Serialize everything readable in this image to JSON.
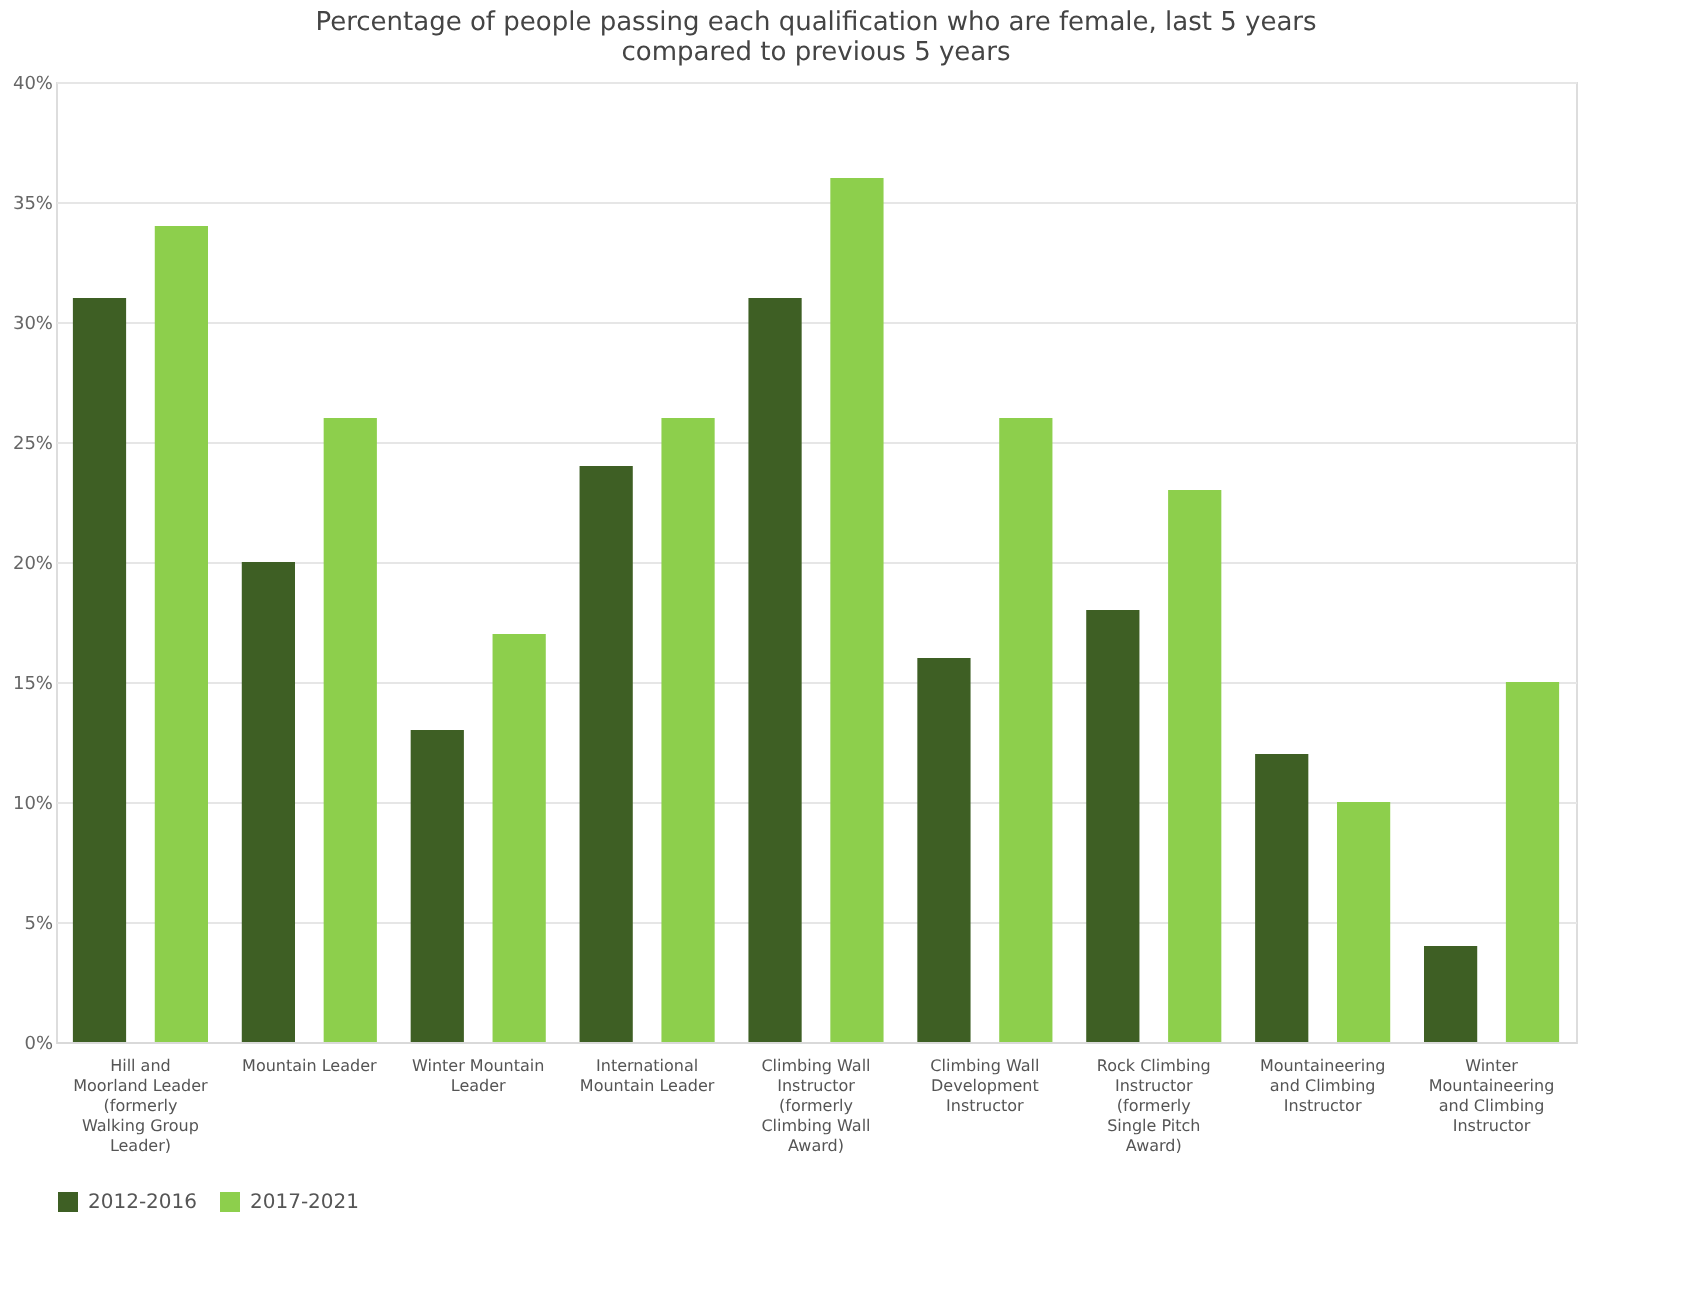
{
  "chart_data": {
    "type": "bar",
    "title": "Percentage of people passing each qualification who are female, last 5 years compared to previous 5 years",
    "categories": [
      "Hill and Moorland Leader (formerly Walking Group Leader)",
      "Mountain Leader",
      "Winter Mountain Leader",
      "International Mountain Leader",
      "Climbing Wall Instructor (formerly Climbing Wall Award)",
      "Climbing Wall Development Instructor",
      "Rock Climbing Instructor (formerly Single Pitch Award)",
      "Mountaineering and Climbing Instructor",
      "Winter Mountaineering and Climbing Instructor"
    ],
    "series": [
      {
        "name": "2012-2016",
        "color": "#3e5f24",
        "values": [
          31,
          20,
          13,
          24,
          31,
          16,
          18,
          12,
          4
        ]
      },
      {
        "name": "2017-2021",
        "color": "#8dcf4c",
        "values": [
          34,
          26,
          17,
          26,
          36,
          26,
          23,
          10,
          15
        ]
      }
    ],
    "ylim": [
      0,
      40
    ],
    "yticks": [
      {
        "value": 0,
        "label": "0%"
      },
      {
        "value": 5,
        "label": "5%"
      },
      {
        "value": 10,
        "label": "10%"
      },
      {
        "value": 15,
        "label": "15%"
      },
      {
        "value": 20,
        "label": "20%"
      },
      {
        "value": 25,
        "label": "25%"
      },
      {
        "value": 30,
        "label": "30%"
      },
      {
        "value": 35,
        "label": "35%"
      },
      {
        "value": 40,
        "label": "40%"
      }
    ],
    "grid": "y",
    "legend": "bottom"
  }
}
